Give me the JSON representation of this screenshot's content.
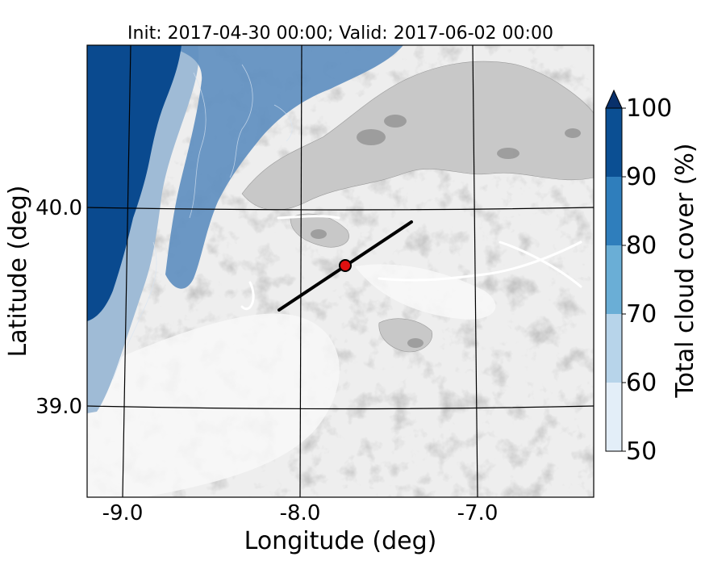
{
  "title": "Init: 2017-04-30 00:00; Valid: 2017-06-02 00:00",
  "map": {
    "xlabel": "Longitude (deg)",
    "ylabel": "Latitude (deg)",
    "lon_ticks": [
      {
        "label": "-9.0"
      },
      {
        "label": "-8.0"
      },
      {
        "label": "-7.0"
      }
    ],
    "lat_ticks": [
      {
        "label": "40.0"
      },
      {
        "label": "39.0"
      }
    ],
    "marker": {
      "color": "#e01010",
      "edge": "#000000"
    },
    "transect_color": "#000000",
    "colors": {
      "ocean": "#0a4a8f",
      "terrain_light": "#f4f4f4",
      "terrain_mid": "#dcdcdc",
      "terrain_dark": "#8c8c8c"
    }
  },
  "colorbar": {
    "label": "Total cloud cover (%)",
    "levels": [
      50,
      60,
      70,
      80,
      90,
      100
    ],
    "tick_labels": [
      "50",
      "60",
      "70",
      "80",
      "90",
      "100"
    ],
    "colors": [
      "#e3eef8",
      "#b7d4ea",
      "#6aaed6",
      "#2f7ebc",
      "#0b4f93"
    ],
    "extend_color": "#08306b",
    "extend": "max"
  }
}
